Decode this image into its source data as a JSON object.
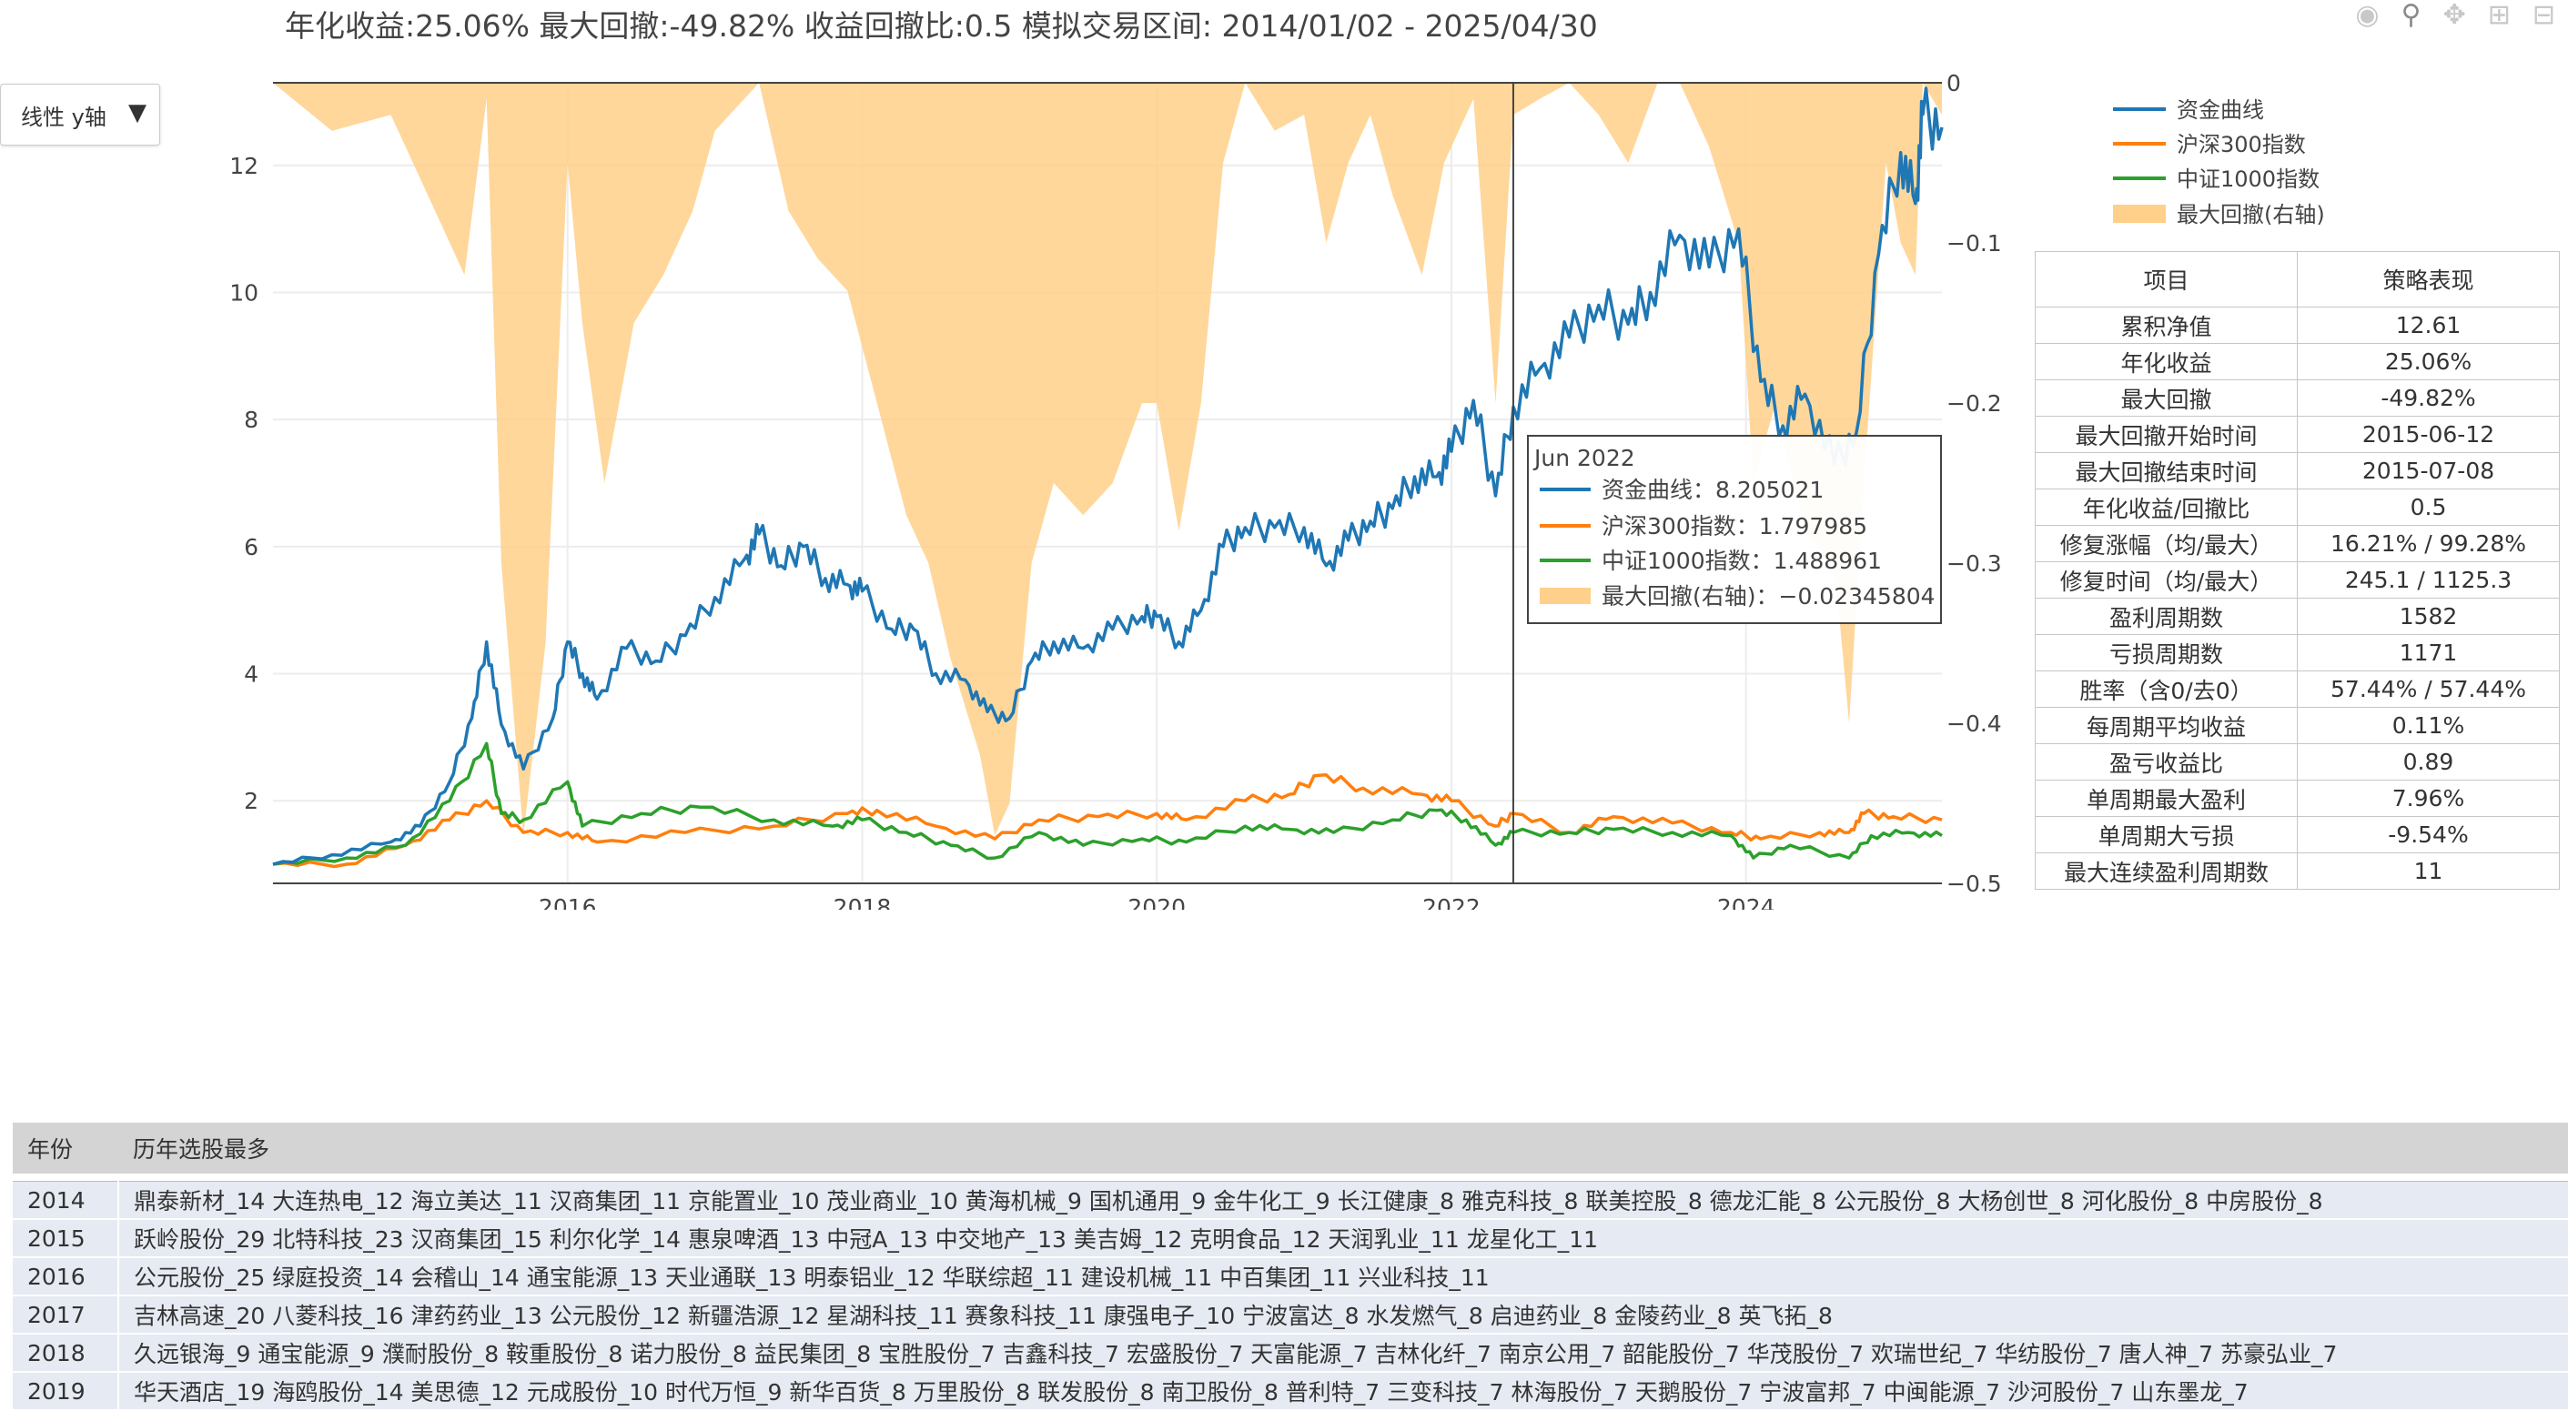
{
  "title": "年化收益:25.06%   最大回撤:-49.82%   收益回撤比:0.5   模拟交易区间: 2014/01/02 - 2025/04/30",
  "dropdown": {
    "label": "线性 y轴",
    "arrow": "▼"
  },
  "modebar": [
    "camera-icon",
    "zoom-icon",
    "pan-icon",
    "zoom-in-icon",
    "zoom-out-icon"
  ],
  "hover": {
    "title": "Jun 2022",
    "rows": [
      "资金曲线：8.205021",
      "沪深300指数：1.797985",
      "中证1000指数：1.488961",
      "最大回撤(右轴)：−0.02345804"
    ],
    "date": 2022.42
  },
  "chart_data": {
    "type": "line",
    "x_ticks": [
      "2016",
      "2018",
      "2020",
      "2022",
      "2024"
    ],
    "x_range": [
      2014.0,
      2025.33
    ],
    "y_left": {
      "range": [
        0.7,
        13.3
      ],
      "ticks": [
        2,
        4,
        6,
        8,
        10,
        12
      ]
    },
    "y_right": {
      "range": [
        -0.5,
        0
      ],
      "ticks": [
        "0",
        "−0.1",
        "−0.2",
        "−0.3",
        "−0.4",
        "−0.5"
      ],
      "tick_values": [
        0,
        -0.1,
        -0.2,
        -0.3,
        -0.4,
        -0.5
      ]
    },
    "legend": [
      "资金曲线",
      "沪深300指数",
      "中证1000指数",
      "最大回撤(右轴)"
    ],
    "legend_position": "top-right",
    "colors": {
      "equity": "#1f77b4",
      "hs300": "#ff7f0e",
      "zz1000": "#2ca02c",
      "drawdown": "#ffd08a"
    },
    "series": [
      {
        "name": "资金曲线",
        "points": [
          [
            2014.0,
            1.0
          ],
          [
            2014.4,
            1.15
          ],
          [
            2014.8,
            1.35
          ],
          [
            2015.0,
            1.6
          ],
          [
            2015.2,
            2.3
          ],
          [
            2015.35,
            3.3
          ],
          [
            2015.45,
            4.5
          ],
          [
            2015.55,
            3.2
          ],
          [
            2015.7,
            2.5
          ],
          [
            2015.9,
            3.3
          ],
          [
            2016.0,
            4.5
          ],
          [
            2016.1,
            4.0
          ],
          [
            2016.2,
            3.6
          ],
          [
            2016.4,
            4.4
          ],
          [
            2016.6,
            4.2
          ],
          [
            2016.8,
            4.6
          ],
          [
            2017.0,
            5.2
          ],
          [
            2017.2,
            5.8
          ],
          [
            2017.3,
            6.2
          ],
          [
            2017.45,
            5.7
          ],
          [
            2017.6,
            6.0
          ],
          [
            2017.75,
            5.5
          ],
          [
            2017.9,
            5.4
          ],
          [
            2018.0,
            5.3
          ],
          [
            2018.2,
            4.7
          ],
          [
            2018.35,
            4.7
          ],
          [
            2018.5,
            4.0
          ],
          [
            2018.7,
            3.9
          ],
          [
            2018.85,
            3.4
          ],
          [
            2019.0,
            3.3
          ],
          [
            2019.15,
            4.2
          ],
          [
            2019.3,
            4.5
          ],
          [
            2019.5,
            4.4
          ],
          [
            2019.7,
            4.7
          ],
          [
            2019.9,
            4.9
          ],
          [
            2020.0,
            4.9
          ],
          [
            2020.15,
            4.5
          ],
          [
            2020.3,
            5.0
          ],
          [
            2020.45,
            6.0
          ],
          [
            2020.6,
            6.3
          ],
          [
            2020.8,
            6.3
          ],
          [
            2021.0,
            6.3
          ],
          [
            2021.15,
            5.7
          ],
          [
            2021.3,
            6.1
          ],
          [
            2021.45,
            6.4
          ],
          [
            2021.6,
            6.6
          ],
          [
            2021.75,
            7.1
          ],
          [
            2021.9,
            7.1
          ],
          [
            2022.0,
            7.5
          ],
          [
            2022.15,
            8.3
          ],
          [
            2022.3,
            6.8
          ],
          [
            2022.42,
            8.2
          ],
          [
            2022.6,
            8.8
          ],
          [
            2022.8,
            9.3
          ],
          [
            2023.0,
            9.8
          ],
          [
            2023.2,
            9.5
          ],
          [
            2023.35,
            10.0
          ],
          [
            2023.55,
            10.9
          ],
          [
            2023.75,
            10.4
          ],
          [
            2023.95,
            11.0
          ],
          [
            2024.1,
            8.6
          ],
          [
            2024.25,
            7.9
          ],
          [
            2024.4,
            8.4
          ],
          [
            2024.6,
            7.3
          ],
          [
            2024.75,
            7.8
          ],
          [
            2024.9,
            10.6
          ],
          [
            2025.05,
            12.2
          ],
          [
            2025.15,
            11.4
          ],
          [
            2025.2,
            12.8
          ],
          [
            2025.33,
            12.6
          ]
        ]
      },
      {
        "name": "沪深300指数",
        "points": [
          [
            2014.0,
            1.0
          ],
          [
            2014.5,
            1.0
          ],
          [
            2014.9,
            1.3
          ],
          [
            2015.2,
            1.7
          ],
          [
            2015.45,
            2.0
          ],
          [
            2015.7,
            1.5
          ],
          [
            2016.0,
            1.5
          ],
          [
            2016.2,
            1.35
          ],
          [
            2016.8,
            1.5
          ],
          [
            2017.4,
            1.6
          ],
          [
            2017.9,
            1.8
          ],
          [
            2018.1,
            1.85
          ],
          [
            2018.5,
            1.6
          ],
          [
            2018.9,
            1.4
          ],
          [
            2019.2,
            1.7
          ],
          [
            2019.6,
            1.75
          ],
          [
            2020.0,
            1.8
          ],
          [
            2020.2,
            1.7
          ],
          [
            2020.6,
            2.0
          ],
          [
            2020.9,
            2.1
          ],
          [
            2021.1,
            2.4
          ],
          [
            2021.4,
            2.2
          ],
          [
            2021.8,
            2.1
          ],
          [
            2022.0,
            2.0
          ],
          [
            2022.3,
            1.6
          ],
          [
            2022.42,
            1.8
          ],
          [
            2022.8,
            1.5
          ],
          [
            2023.1,
            1.75
          ],
          [
            2023.5,
            1.65
          ],
          [
            2023.9,
            1.5
          ],
          [
            2024.1,
            1.4
          ],
          [
            2024.5,
            1.5
          ],
          [
            2024.7,
            1.5
          ],
          [
            2024.8,
            1.8
          ],
          [
            2025.0,
            1.75
          ],
          [
            2025.33,
            1.7
          ]
        ]
      },
      {
        "name": "中证1000指数",
        "points": [
          [
            2014.0,
            1.0
          ],
          [
            2014.5,
            1.1
          ],
          [
            2014.9,
            1.3
          ],
          [
            2015.2,
            2.0
          ],
          [
            2015.45,
            2.9
          ],
          [
            2015.55,
            1.8
          ],
          [
            2015.7,
            1.7
          ],
          [
            2016.0,
            2.3
          ],
          [
            2016.1,
            1.6
          ],
          [
            2016.5,
            1.8
          ],
          [
            2016.9,
            1.9
          ],
          [
            2017.4,
            1.7
          ],
          [
            2017.8,
            1.6
          ],
          [
            2018.0,
            1.7
          ],
          [
            2018.3,
            1.5
          ],
          [
            2018.6,
            1.3
          ],
          [
            2018.9,
            1.1
          ],
          [
            2019.2,
            1.5
          ],
          [
            2019.5,
            1.3
          ],
          [
            2019.9,
            1.4
          ],
          [
            2020.2,
            1.35
          ],
          [
            2020.6,
            1.6
          ],
          [
            2020.9,
            1.55
          ],
          [
            2021.2,
            1.5
          ],
          [
            2021.6,
            1.7
          ],
          [
            2021.9,
            1.85
          ],
          [
            2022.1,
            1.7
          ],
          [
            2022.3,
            1.3
          ],
          [
            2022.42,
            1.5
          ],
          [
            2022.8,
            1.5
          ],
          [
            2023.1,
            1.55
          ],
          [
            2023.5,
            1.5
          ],
          [
            2023.9,
            1.45
          ],
          [
            2024.05,
            1.1
          ],
          [
            2024.3,
            1.3
          ],
          [
            2024.7,
            1.1
          ],
          [
            2024.85,
            1.45
          ],
          [
            2025.1,
            1.5
          ],
          [
            2025.33,
            1.45
          ]
        ]
      },
      {
        "name": "最大回撤(右轴)",
        "points": [
          [
            2014.0,
            0
          ],
          [
            2014.4,
            -0.03
          ],
          [
            2014.8,
            -0.02
          ],
          [
            2015.0,
            -0.06
          ],
          [
            2015.3,
            -0.12
          ],
          [
            2015.45,
            -0.01
          ],
          [
            2015.55,
            -0.3
          ],
          [
            2015.7,
            -0.47
          ],
          [
            2015.85,
            -0.35
          ],
          [
            2016.0,
            -0.05
          ],
          [
            2016.1,
            -0.15
          ],
          [
            2016.25,
            -0.25
          ],
          [
            2016.45,
            -0.15
          ],
          [
            2016.65,
            -0.12
          ],
          [
            2016.85,
            -0.08
          ],
          [
            2017.0,
            -0.03
          ],
          [
            2017.3,
            0
          ],
          [
            2017.5,
            -0.08
          ],
          [
            2017.7,
            -0.11
          ],
          [
            2017.9,
            -0.13
          ],
          [
            2018.1,
            -0.2
          ],
          [
            2018.3,
            -0.27
          ],
          [
            2018.45,
            -0.3
          ],
          [
            2018.6,
            -0.36
          ],
          [
            2018.8,
            -0.42
          ],
          [
            2018.9,
            -0.47
          ],
          [
            2019.0,
            -0.45
          ],
          [
            2019.15,
            -0.3
          ],
          [
            2019.3,
            -0.25
          ],
          [
            2019.5,
            -0.27
          ],
          [
            2019.7,
            -0.25
          ],
          [
            2019.9,
            -0.2
          ],
          [
            2020.0,
            -0.2
          ],
          [
            2020.15,
            -0.28
          ],
          [
            2020.3,
            -0.2
          ],
          [
            2020.45,
            -0.05
          ],
          [
            2020.6,
            0
          ],
          [
            2020.8,
            -0.03
          ],
          [
            2021.0,
            -0.02
          ],
          [
            2021.15,
            -0.1
          ],
          [
            2021.3,
            -0.05
          ],
          [
            2021.45,
            -0.02
          ],
          [
            2021.6,
            -0.07
          ],
          [
            2021.8,
            -0.12
          ],
          [
            2021.95,
            -0.05
          ],
          [
            2022.15,
            -0.01
          ],
          [
            2022.3,
            -0.2
          ],
          [
            2022.42,
            -0.02
          ],
          [
            2022.6,
            -0.01
          ],
          [
            2022.8,
            0
          ],
          [
            2023.0,
            -0.02
          ],
          [
            2023.2,
            -0.05
          ],
          [
            2023.4,
            0
          ],
          [
            2023.55,
            0
          ],
          [
            2023.75,
            -0.04
          ],
          [
            2023.95,
            -0.1
          ],
          [
            2024.05,
            -0.25
          ],
          [
            2024.2,
            -0.2
          ],
          [
            2024.4,
            -0.28
          ],
          [
            2024.6,
            -0.3
          ],
          [
            2024.7,
            -0.4
          ],
          [
            2024.8,
            -0.25
          ],
          [
            2024.95,
            -0.05
          ],
          [
            2025.05,
            -0.1
          ],
          [
            2025.15,
            -0.12
          ],
          [
            2025.2,
            0
          ],
          [
            2025.33,
            -0.02
          ]
        ]
      }
    ]
  },
  "stats_table": {
    "headers": [
      "项目",
      "策略表现"
    ],
    "rows": [
      [
        "累积净值",
        "12.61"
      ],
      [
        "年化收益",
        "25.06%"
      ],
      [
        "最大回撤",
        "-49.82%"
      ],
      [
        "最大回撤开始时间",
        "2015-06-12"
      ],
      [
        "最大回撤结束时间",
        "2015-07-08"
      ],
      [
        "年化收益/回撤比",
        "0.5"
      ],
      [
        "修复涨幅（均/最大）",
        "16.21% / 99.28%"
      ],
      [
        "修复时间（均/最大）",
        "245.1 / 1125.3"
      ],
      [
        "盈利周期数",
        "1582"
      ],
      [
        "亏损周期数",
        "1171"
      ],
      [
        "胜率（含0/去0）",
        "57.44% / 57.44%"
      ],
      [
        "每周期平均收益",
        "0.11%"
      ],
      [
        "盈亏收益比",
        "0.89"
      ],
      [
        "单周期最大盈利",
        "7.96%"
      ],
      [
        "单周期大亏损",
        "-9.54%"
      ],
      [
        "最大连续盈利周期数",
        "11"
      ]
    ]
  },
  "stock_table": {
    "headers": [
      "年份",
      "历年选股最多"
    ],
    "rows": [
      [
        "2014",
        "鼎泰新材_14 大连热电_12 海立美达_11 汉商集团_11 京能置业_10 茂业商业_10 黄海机械_9 国机通用_9 金牛化工_9 长江健康_8 雅克科技_8 联美控股_8 德龙汇能_8 公元股份_8 大杨创世_8 河化股份_8 中房股份_8"
      ],
      [
        "2015",
        "跃岭股份_29 北特科技_23 汉商集团_15 利尔化学_14 惠泉啤酒_13 中冠A_13 中交地产_13 美吉姆_12 克明食品_12 天润乳业_11 龙星化工_11"
      ],
      [
        "2016",
        "公元股份_25 绿庭投资_14 会稽山_14 通宝能源_13 天业通联_13 明泰铝业_12 华联综超_11 建设机械_11 中百集团_11 兴业科技_11"
      ],
      [
        "2017",
        "吉林高速_20 八菱科技_16 津药药业_13 公元股份_12 新疆浩源_12 星湖科技_11 赛象科技_11 康强电子_10 宁波富达_8 水发燃气_8 启迪药业_8 金陵药业_8 英飞拓_8"
      ],
      [
        "2018",
        "久远银海_9 通宝能源_9 濮耐股份_8 鞍重股份_8 诺力股份_8 益民集团_8 宝胜股份_7 吉鑫科技_7 宏盛股份_7 天富能源_7 吉林化纤_7 南京公用_7 韶能股份_7 华茂股份_7 欢瑞世纪_7 华纺股份_7 唐人神_7 苏豪弘业_7"
      ],
      [
        "2019",
        "华天酒店_19 海鸥股份_14 美思德_12 元成股份_10 时代万恒_9 新华百货_8 万里股份_8 联发股份_8 南卫股份_8 普利特_7 三变科技_7 林海股份_7 天鹅股份_7 宁波富邦_7 中闽能源_7 沙河股份_7 山东墨龙_7"
      ]
    ]
  }
}
